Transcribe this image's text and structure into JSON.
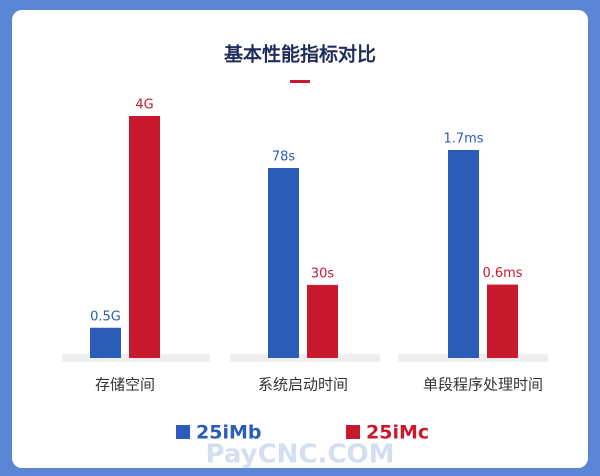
{
  "chart_data": {
    "type": "bar",
    "title": "基本性能指标对比",
    "categories": [
      "存储空间",
      "系统启动时间",
      "单段程序处理时间"
    ],
    "series": [
      {
        "name": "25iMb",
        "color": "#2a5cb8",
        "values": [
          0.5,
          78,
          1.7
        ],
        "value_labels": [
          "0.5G",
          "78s",
          "1.7ms"
        ]
      },
      {
        "name": "25iMc",
        "color": "#c8192e",
        "values": [
          4,
          30,
          0.6
        ],
        "value_labels": [
          "4G",
          "30s",
          "0.6ms"
        ]
      }
    ],
    "watermark": "PayCNC.COM"
  }
}
